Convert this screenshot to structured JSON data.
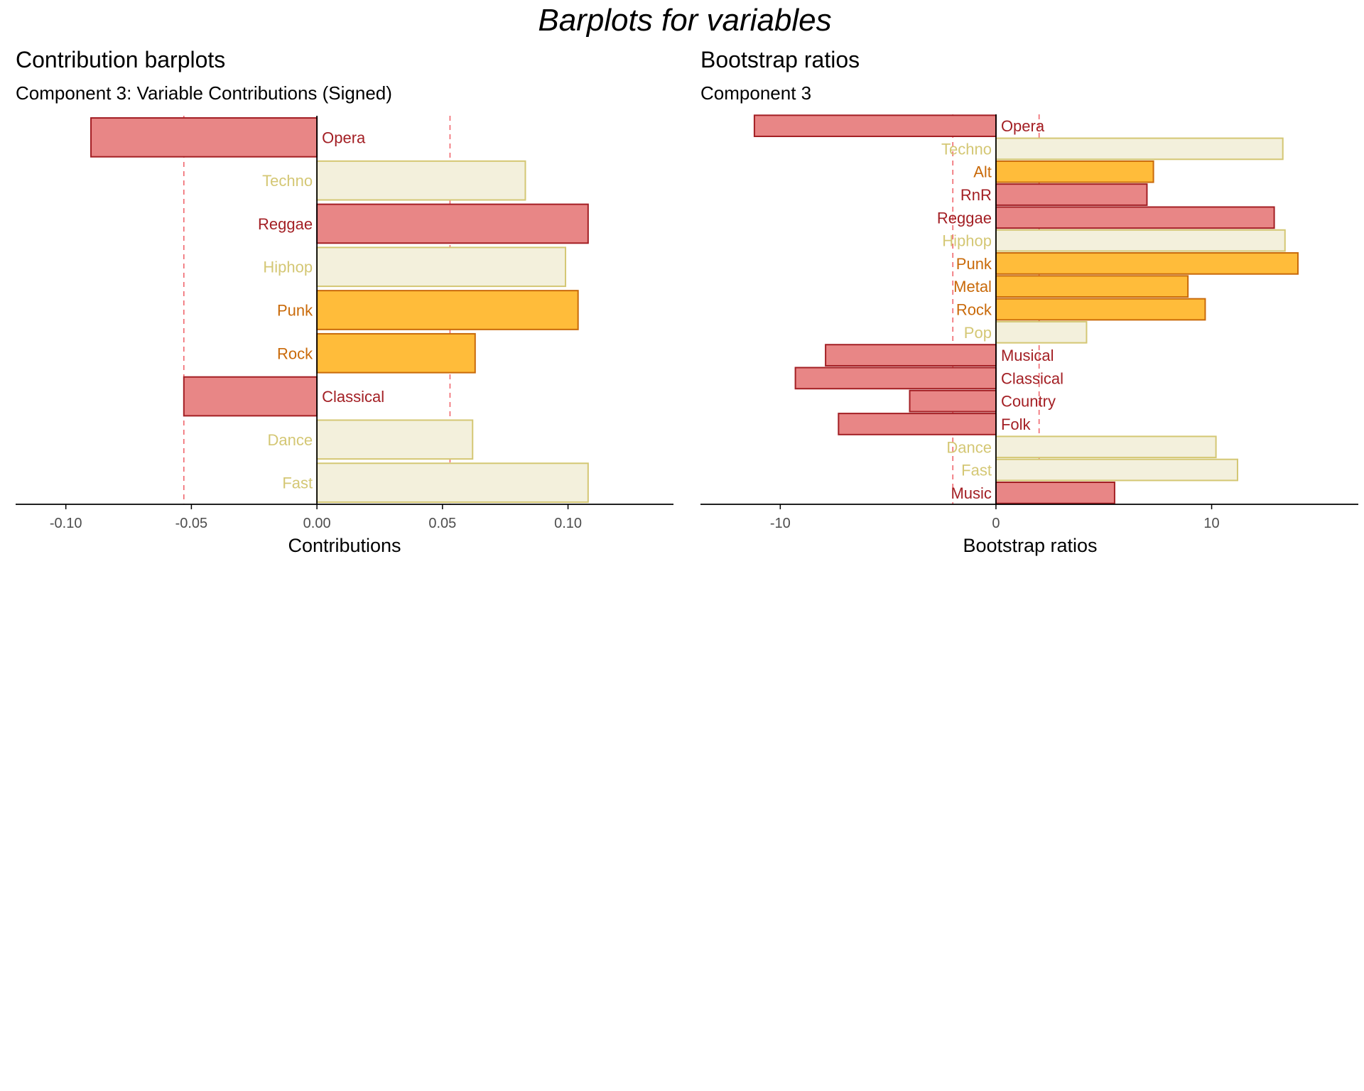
{
  "figure": {
    "title": "Barplots for variables"
  },
  "colors": {
    "red_fill": "#E88686",
    "red_stroke": "#A31F24",
    "cream_fill": "#F3F0DC",
    "cream_stroke": "#D4C774",
    "orange_fill": "#FFBC3A",
    "orange_stroke": "#C96A0A",
    "threshold_line": "#F0676E",
    "axis": "#000000",
    "tick_label": "#4D4D4D"
  },
  "chart_data": [
    {
      "type": "bar",
      "orientation": "horizontal",
      "title": "Contribution barplots",
      "subtitle": "Component 3: Variable Contributions (Signed)",
      "xlabel": "Contributions",
      "ylabel": "",
      "xlim": [
        -0.12,
        0.142
      ],
      "xticks": [
        -0.1,
        -0.05,
        0.0,
        0.05,
        0.1
      ],
      "xtick_labels": [
        "-0.10",
        "-0.05",
        "0.00",
        "0.05",
        "0.10"
      ],
      "reference_lines": [
        -0.053,
        0.053
      ],
      "grid": false,
      "bars": [
        {
          "label": "Opera",
          "value": -0.09,
          "group": "red"
        },
        {
          "label": "Techno",
          "value": 0.083,
          "group": "cream"
        },
        {
          "label": "Reggae",
          "value": 0.108,
          "group": "red"
        },
        {
          "label": "Hiphop",
          "value": 0.099,
          "group": "cream"
        },
        {
          "label": "Punk",
          "value": 0.104,
          "group": "orange"
        },
        {
          "label": "Rock",
          "value": 0.063,
          "group": "orange"
        },
        {
          "label": "Classical",
          "value": -0.053,
          "group": "red"
        },
        {
          "label": "Dance",
          "value": 0.062,
          "group": "cream"
        },
        {
          "label": "Fast",
          "value": 0.108,
          "group": "cream"
        }
      ]
    },
    {
      "type": "bar",
      "orientation": "horizontal",
      "title": "Bootstrap ratios",
      "subtitle": "Component 3",
      "xlabel": "Bootstrap ratios",
      "ylabel": "",
      "xlim": [
        -13.7,
        16.8
      ],
      "xticks": [
        -10,
        0,
        10
      ],
      "xtick_labels": [
        "-10",
        "0",
        "10"
      ],
      "reference_lines": [
        -2,
        2
      ],
      "grid": false,
      "bars": [
        {
          "label": "Opera",
          "value": -11.2,
          "group": "red"
        },
        {
          "label": "Techno",
          "value": 13.3,
          "group": "cream"
        },
        {
          "label": "Alt",
          "value": 7.3,
          "group": "orange"
        },
        {
          "label": "RnR",
          "value": 7.0,
          "group": "red"
        },
        {
          "label": "Reggae",
          "value": 12.9,
          "group": "red"
        },
        {
          "label": "Hiphop",
          "value": 13.4,
          "group": "cream"
        },
        {
          "label": "Punk",
          "value": 14.0,
          "group": "orange"
        },
        {
          "label": "Metal",
          "value": 8.9,
          "group": "orange"
        },
        {
          "label": "Rock",
          "value": 9.7,
          "group": "orange"
        },
        {
          "label": "Pop",
          "value": 4.2,
          "group": "cream"
        },
        {
          "label": "Musical",
          "value": -7.9,
          "group": "red"
        },
        {
          "label": "Classical",
          "value": -9.3,
          "group": "red"
        },
        {
          "label": "Country",
          "value": -4.0,
          "group": "red"
        },
        {
          "label": "Folk",
          "value": -7.3,
          "group": "red"
        },
        {
          "label": "Dance",
          "value": 10.2,
          "group": "cream"
        },
        {
          "label": "Fast",
          "value": 11.2,
          "group": "cream"
        },
        {
          "label": "Music",
          "value": 5.5,
          "group": "red"
        }
      ]
    }
  ]
}
